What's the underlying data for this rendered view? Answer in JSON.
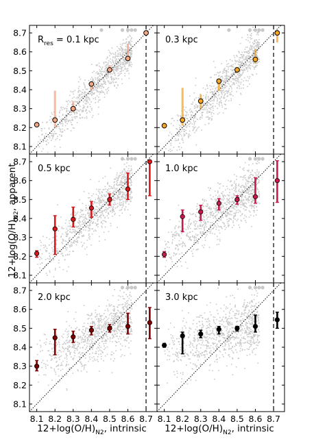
{
  "figure": {
    "ylabel_main": "12+log(O/H)",
    "ylabel_sub": "N2",
    "ylabel_tail": ", apparent",
    "xlabel_main": "12+log(O/H)",
    "xlabel_sub": "N2",
    "xlabel_tail": ", intrinsic"
  },
  "chart_data": [
    {
      "type": "scatter",
      "panel_label": "R",
      "panel_label_sub": "res",
      "panel_label_tail": " = 0.1 kpc",
      "color": "#f4a582",
      "xlim": [
        8.06,
        8.76
      ],
      "ylim": [
        8.06,
        8.74
      ],
      "x_ticks": [
        8.1,
        8.2,
        8.3,
        8.4,
        8.5,
        8.6,
        8.7
      ],
      "y_ticks": [
        8.1,
        8.2,
        8.3,
        8.4,
        8.5,
        8.6,
        8.7
      ],
      "x_ticklabels_shown": false,
      "y_ticklabels_shown": true,
      "points": [
        {
          "x": 8.1,
          "y": 8.215,
          "ylo": 8.205,
          "yhi": 8.23
        },
        {
          "x": 8.2,
          "y": 8.24,
          "ylo": 8.2,
          "yhi": 8.395
        },
        {
          "x": 8.3,
          "y": 8.3,
          "ylo": 8.28,
          "yhi": 8.34
        },
        {
          "x": 8.4,
          "y": 8.43,
          "ylo": 8.4,
          "yhi": 8.445
        },
        {
          "x": 8.5,
          "y": 8.505,
          "ylo": 8.49,
          "yhi": 8.53
        },
        {
          "x": 8.6,
          "y": 8.565,
          "ylo": 8.55,
          "yhi": 8.64
        },
        {
          "x": 8.7,
          "y": 8.7,
          "ylo": 8.7,
          "yhi": 8.7
        }
      ],
      "one_to_one_line": true,
      "vertical_dashed_line_x": 8.7
    },
    {
      "type": "scatter",
      "panel_label": "0.3 kpc",
      "color": "#f5a623",
      "xlim": [
        8.06,
        8.76
      ],
      "ylim": [
        8.06,
        8.74
      ],
      "x_ticks": [
        8.1,
        8.2,
        8.3,
        8.4,
        8.5,
        8.6,
        8.7
      ],
      "y_ticks": [
        8.1,
        8.2,
        8.3,
        8.4,
        8.5,
        8.6,
        8.7
      ],
      "x_ticklabels_shown": false,
      "y_ticklabels_shown": false,
      "points": [
        {
          "x": 8.1,
          "y": 8.21,
          "ylo": 8.195,
          "yhi": 8.225
        },
        {
          "x": 8.2,
          "y": 8.24,
          "ylo": 8.21,
          "yhi": 8.41
        },
        {
          "x": 8.3,
          "y": 8.34,
          "ylo": 8.3,
          "yhi": 8.375
        },
        {
          "x": 8.4,
          "y": 8.445,
          "ylo": 8.395,
          "yhi": 8.46
        },
        {
          "x": 8.5,
          "y": 8.505,
          "ylo": 8.49,
          "yhi": 8.52
        },
        {
          "x": 8.6,
          "y": 8.56,
          "ylo": 8.54,
          "yhi": 8.615
        },
        {
          "x": 8.72,
          "y": 8.7,
          "ylo": 8.65,
          "yhi": 8.7
        }
      ],
      "one_to_one_line": true,
      "vertical_dashed_line_x": 8.7
    },
    {
      "type": "scatter",
      "panel_label": "0.5 kpc",
      "color": "#d7191c",
      "xlim": [
        8.06,
        8.76
      ],
      "ylim": [
        8.06,
        8.74
      ],
      "x_ticks": [
        8.1,
        8.2,
        8.3,
        8.4,
        8.5,
        8.6,
        8.7
      ],
      "y_ticks": [
        8.1,
        8.2,
        8.3,
        8.4,
        8.5,
        8.6,
        8.7
      ],
      "x_ticklabels_shown": false,
      "y_ticklabels_shown": true,
      "points": [
        {
          "x": 8.1,
          "y": 8.215,
          "ylo": 8.195,
          "yhi": 8.23
        },
        {
          "x": 8.2,
          "y": 8.345,
          "ylo": 8.21,
          "yhi": 8.415
        },
        {
          "x": 8.3,
          "y": 8.395,
          "ylo": 8.355,
          "yhi": 8.46
        },
        {
          "x": 8.4,
          "y": 8.455,
          "ylo": 8.405,
          "yhi": 8.49
        },
        {
          "x": 8.5,
          "y": 8.5,
          "ylo": 8.47,
          "yhi": 8.53
        },
        {
          "x": 8.6,
          "y": 8.555,
          "ylo": 8.5,
          "yhi": 8.64
        },
        {
          "x": 8.72,
          "y": 8.7,
          "ylo": 8.52,
          "yhi": 8.7
        }
      ],
      "one_to_one_line": true,
      "vertical_dashed_line_x": 8.7
    },
    {
      "type": "scatter",
      "panel_label": "1.0 kpc",
      "color": "#c51b4b",
      "xlim": [
        8.06,
        8.76
      ],
      "ylim": [
        8.06,
        8.74
      ],
      "x_ticks": [
        8.1,
        8.2,
        8.3,
        8.4,
        8.5,
        8.6,
        8.7
      ],
      "y_ticks": [
        8.1,
        8.2,
        8.3,
        8.4,
        8.5,
        8.6,
        8.7
      ],
      "x_ticklabels_shown": false,
      "y_ticklabels_shown": false,
      "points": [
        {
          "x": 8.1,
          "y": 8.21,
          "ylo": 8.195,
          "yhi": 8.225
        },
        {
          "x": 8.2,
          "y": 8.41,
          "ylo": 8.33,
          "yhi": 8.445
        },
        {
          "x": 8.3,
          "y": 8.435,
          "ylo": 8.39,
          "yhi": 8.47
        },
        {
          "x": 8.4,
          "y": 8.48,
          "ylo": 8.445,
          "yhi": 8.505
        },
        {
          "x": 8.5,
          "y": 8.5,
          "ylo": 8.475,
          "yhi": 8.52
        },
        {
          "x": 8.6,
          "y": 8.515,
          "ylo": 8.48,
          "yhi": 8.615
        },
        {
          "x": 8.72,
          "y": 8.6,
          "ylo": 8.485,
          "yhi": 8.705
        }
      ],
      "one_to_one_line": true,
      "vertical_dashed_line_x": 8.7
    },
    {
      "type": "scatter",
      "panel_label": "2.0 kpc",
      "color": "#7f0000",
      "xlim": [
        8.06,
        8.76
      ],
      "ylim": [
        8.06,
        8.74
      ],
      "x_ticks": [
        8.1,
        8.2,
        8.3,
        8.4,
        8.5,
        8.6,
        8.7
      ],
      "y_ticks": [
        8.1,
        8.2,
        8.3,
        8.4,
        8.5,
        8.6,
        8.7
      ],
      "x_ticklabels_shown": true,
      "y_ticklabels_shown": true,
      "points": [
        {
          "x": 8.1,
          "y": 8.3,
          "ylo": 8.275,
          "yhi": 8.33
        },
        {
          "x": 8.2,
          "y": 8.45,
          "ylo": 8.36,
          "yhi": 8.495
        },
        {
          "x": 8.3,
          "y": 8.455,
          "ylo": 8.425,
          "yhi": 8.485
        },
        {
          "x": 8.4,
          "y": 8.49,
          "ylo": 8.465,
          "yhi": 8.51
        },
        {
          "x": 8.5,
          "y": 8.5,
          "ylo": 8.48,
          "yhi": 8.52
        },
        {
          "x": 8.6,
          "y": 8.51,
          "ylo": 8.47,
          "yhi": 8.58
        },
        {
          "x": 8.72,
          "y": 8.53,
          "ylo": 8.445,
          "yhi": 8.61
        }
      ],
      "one_to_one_line": true,
      "vertical_dashed_line_x": 8.7
    },
    {
      "type": "scatter",
      "panel_label": "3.0 kpc",
      "color": "#000000",
      "xlim": [
        8.06,
        8.76
      ],
      "ylim": [
        8.06,
        8.74
      ],
      "x_ticks": [
        8.1,
        8.2,
        8.3,
        8.4,
        8.5,
        8.6,
        8.7
      ],
      "y_ticks": [
        8.1,
        8.2,
        8.3,
        8.4,
        8.5,
        8.6,
        8.7
      ],
      "x_ticklabels_shown": true,
      "y_ticklabels_shown": false,
      "points": [
        {
          "x": 8.1,
          "y": 8.41,
          "ylo": 8.4,
          "yhi": 8.42
        },
        {
          "x": 8.2,
          "y": 8.46,
          "ylo": 8.365,
          "yhi": 8.48
        },
        {
          "x": 8.3,
          "y": 8.47,
          "ylo": 8.45,
          "yhi": 8.49
        },
        {
          "x": 8.4,
          "y": 8.495,
          "ylo": 8.47,
          "yhi": 8.51
        },
        {
          "x": 8.5,
          "y": 8.5,
          "ylo": 8.485,
          "yhi": 8.51
        },
        {
          "x": 8.6,
          "y": 8.51,
          "ylo": 8.48,
          "yhi": 8.57
        },
        {
          "x": 8.72,
          "y": 8.545,
          "ylo": 8.5,
          "yhi": 8.585
        }
      ],
      "one_to_one_line": true,
      "vertical_dashed_line_x": 8.7
    }
  ]
}
